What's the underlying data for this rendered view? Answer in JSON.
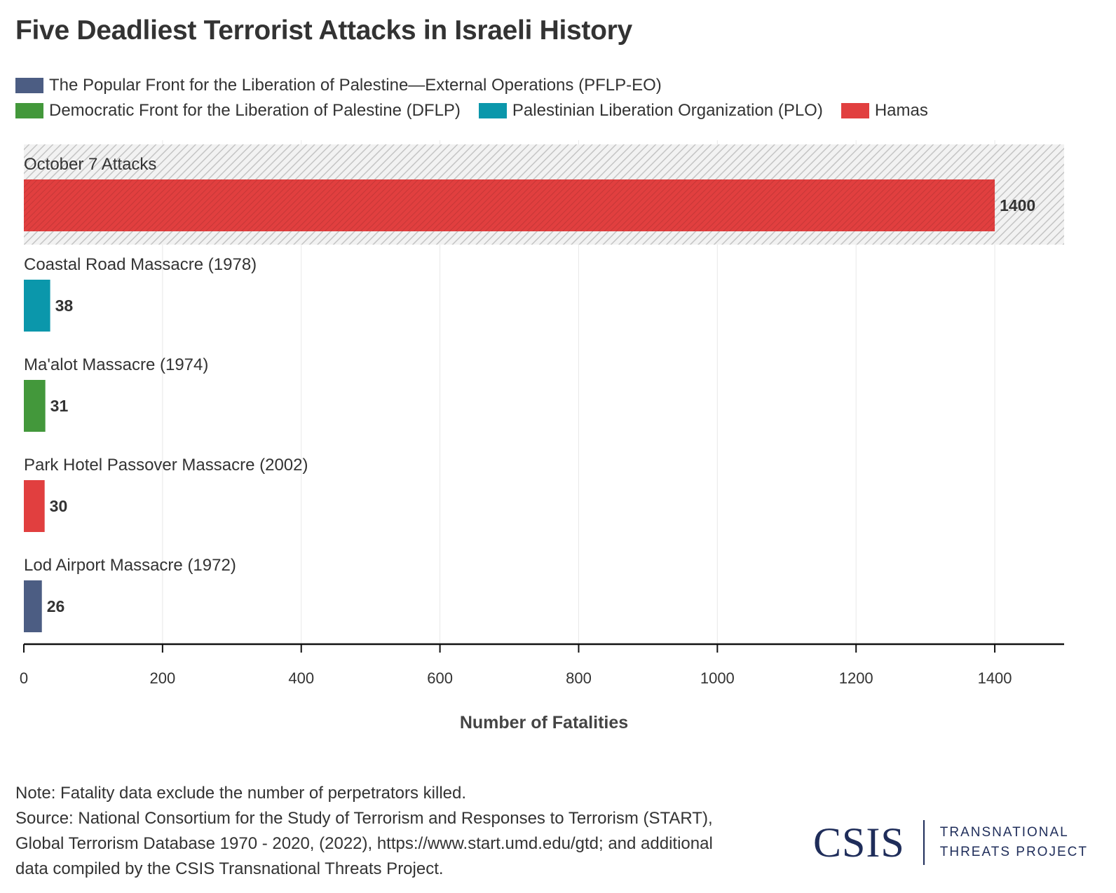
{
  "title": "Five Deadliest Terrorist Attacks in Israeli History",
  "legend": {
    "rows": [
      [
        {
          "label": "The Popular Front for the Liberation of Palestine—External Operations (PFLP-EO)",
          "color": "#4c5d83"
        }
      ],
      [
        {
          "label": "Democratic Front for the Liberation of Palestine (DFLP)",
          "color": "#43983b"
        },
        {
          "label": "Palestinian Liberation Organization (PLO)",
          "color": "#0b97ab"
        },
        {
          "label": "Hamas",
          "color": "#e13f3f"
        }
      ]
    ]
  },
  "chart_data": {
    "type": "bar",
    "orientation": "horizontal",
    "categories": [
      "October 7 Attacks",
      "Coastal Road Massacre (1978)",
      "Ma'alot Massacre (1974)",
      "Park Hotel Passover Massacre (2002)",
      "Lod Airport Massacre (1972)"
    ],
    "values": [
      1400,
      38,
      31,
      30,
      26
    ],
    "value_labels": [
      "1400",
      "38",
      "31",
      "30",
      "26"
    ],
    "bar_colors": [
      "#e13f3f",
      "#0b97ab",
      "#43983b",
      "#e13f3f",
      "#4c5d83"
    ],
    "highlighted": [
      true,
      false,
      false,
      false,
      false
    ],
    "xlabel": "Number of Fatalities",
    "xlim": [
      0,
      1500
    ],
    "xticks": [
      0,
      200,
      400,
      600,
      800,
      1000,
      1200,
      1400
    ],
    "xtick_labels": [
      "0",
      "200",
      "400",
      "600",
      "800",
      "1000",
      "1200",
      "1400"
    ],
    "grid": "vertical"
  },
  "notes": {
    "lines": [
      "Note: Fatality data exclude the number of perpetrators killed.",
      "Source: National Consortium for the Study of Terrorism and Responses to Terrorism (START),",
      "Global Terrorism Database 1970 - 2020, (2022), https://www.start.umd.edu/gtd; and additional",
      "data compiled by the CSIS Transnational Threats Project."
    ]
  },
  "logo": {
    "mark": "CSIS",
    "line1": "TRANSNATIONAL",
    "line2": "THREATS PROJECT"
  }
}
